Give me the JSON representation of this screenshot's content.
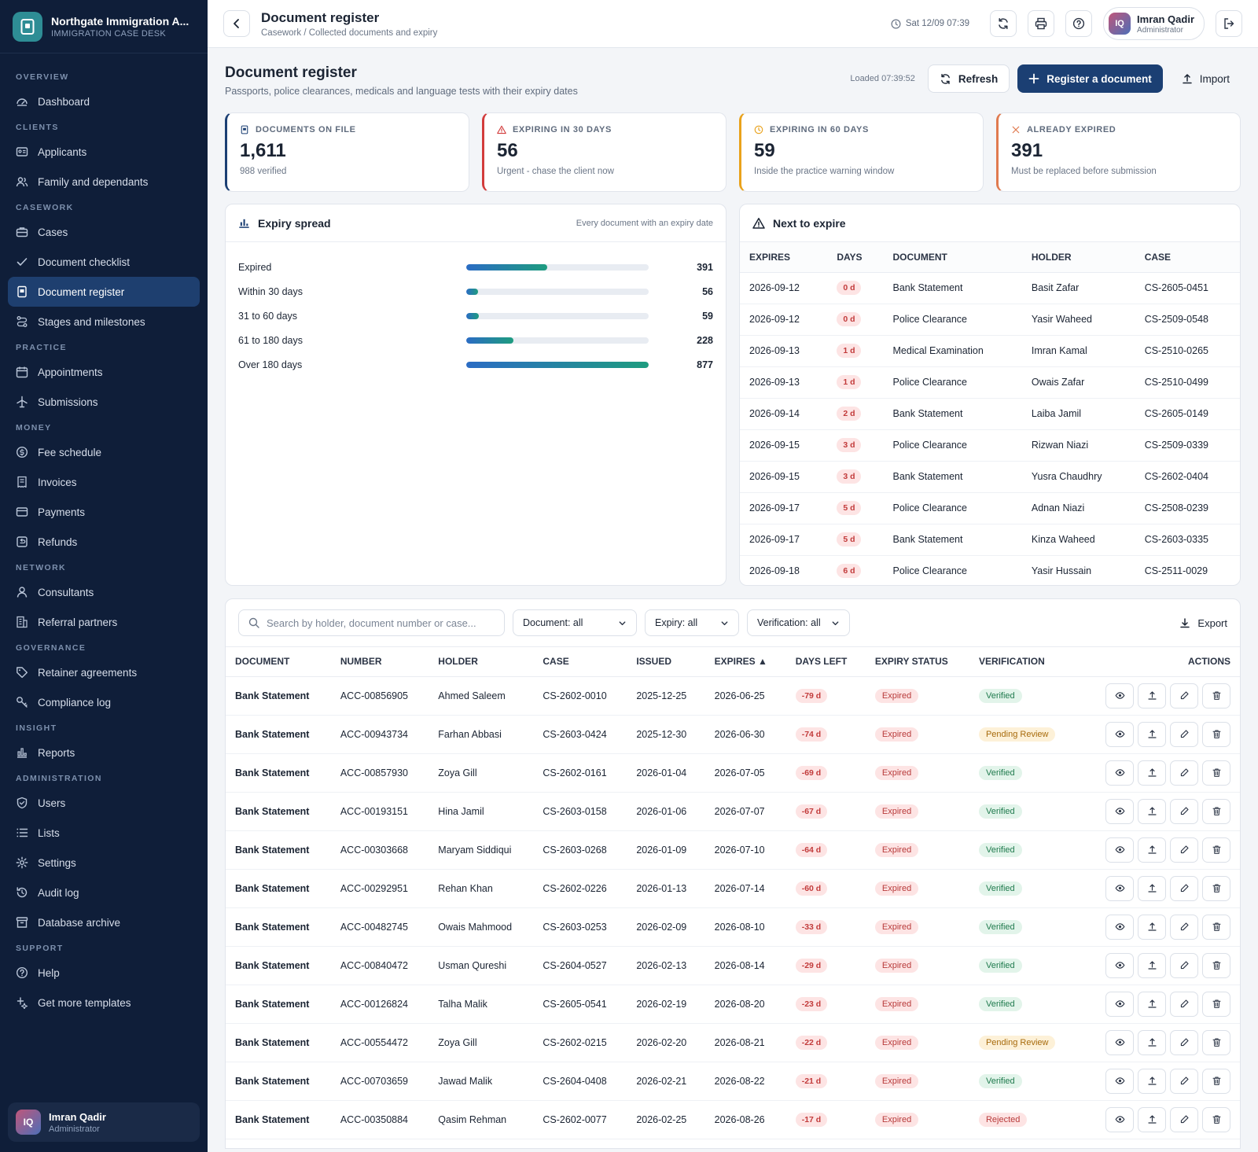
{
  "app": {
    "title": "Northgate Immigration A...",
    "subtitle": "IMMIGRATION CASE DESK"
  },
  "sidebar": {
    "sections": [
      {
        "label": "OVERVIEW",
        "items": [
          {
            "label": "Dashboard",
            "icon": "dashboard-icon"
          }
        ]
      },
      {
        "label": "CLIENTS",
        "items": [
          {
            "label": "Applicants",
            "icon": "id-card-icon"
          },
          {
            "label": "Family and dependants",
            "icon": "users-icon"
          }
        ]
      },
      {
        "label": "CASEWORK",
        "items": [
          {
            "label": "Cases",
            "icon": "briefcase-icon"
          },
          {
            "label": "Document checklist",
            "icon": "check-icon"
          },
          {
            "label": "Document register",
            "icon": "document-icon",
            "active": true
          },
          {
            "label": "Stages and milestones",
            "icon": "route-icon"
          }
        ]
      },
      {
        "label": "PRACTICE",
        "items": [
          {
            "label": "Appointments",
            "icon": "calendar-icon"
          },
          {
            "label": "Submissions",
            "icon": "plane-icon"
          }
        ]
      },
      {
        "label": "MONEY",
        "items": [
          {
            "label": "Fee schedule",
            "icon": "dollar-icon"
          },
          {
            "label": "Invoices",
            "icon": "receipt-icon"
          },
          {
            "label": "Payments",
            "icon": "card-icon"
          },
          {
            "label": "Refunds",
            "icon": "refund-icon"
          }
        ]
      },
      {
        "label": "NETWORK",
        "items": [
          {
            "label": "Consultants",
            "icon": "user-icon"
          },
          {
            "label": "Referral partners",
            "icon": "building-icon"
          }
        ]
      },
      {
        "label": "GOVERNANCE",
        "items": [
          {
            "label": "Retainer agreements",
            "icon": "tag-icon"
          },
          {
            "label": "Compliance log",
            "icon": "key-icon"
          }
        ]
      },
      {
        "label": "INSIGHT",
        "items": [
          {
            "label": "Reports",
            "icon": "bar-chart-icon"
          }
        ]
      },
      {
        "label": "ADMINISTRATION",
        "items": [
          {
            "label": "Users",
            "icon": "shield-icon"
          },
          {
            "label": "Lists",
            "icon": "list-icon"
          },
          {
            "label": "Settings",
            "icon": "gear-icon"
          },
          {
            "label": "Audit log",
            "icon": "history-icon"
          },
          {
            "label": "Database archive",
            "icon": "archive-icon"
          }
        ]
      },
      {
        "label": "SUPPORT",
        "items": [
          {
            "label": "Help",
            "icon": "help-icon"
          },
          {
            "label": "Get more templates",
            "icon": "sparkle-icon"
          }
        ]
      }
    ],
    "user": {
      "initials": "IQ",
      "name": "Imran Qadir",
      "role": "Administrator"
    }
  },
  "topbar": {
    "title": "Document register",
    "breadcrumb": "Casework / Collected documents and expiry",
    "clock": "Sat 12/09 07:39",
    "user": {
      "initials": "IQ",
      "name": "Imran Qadir",
      "role": "Administrator"
    }
  },
  "page": {
    "title": "Document register",
    "subtitle": "Passports, police clearances, medicals and language tests with their expiry dates",
    "loaded": "Loaded 07:39:52",
    "refresh_label": "Refresh",
    "register_label": "Register a document",
    "import_label": "Import"
  },
  "kpis": [
    {
      "label": "DOCUMENTS ON FILE",
      "value": "1,611",
      "note": "988 verified",
      "color": "#1b3f73",
      "icon": "document-icon"
    },
    {
      "label": "EXPIRING IN 30 DAYS",
      "value": "56",
      "note": "Urgent - chase the client now",
      "color": "#d23c3c",
      "icon": "warning-icon"
    },
    {
      "label": "EXPIRING IN 60 DAYS",
      "value": "59",
      "note": "Inside the practice warning window",
      "color": "#e9a21b",
      "icon": "clock-icon"
    },
    {
      "label": "ALREADY EXPIRED",
      "value": "391",
      "note": "Must be replaced before submission",
      "color": "#e07a4f",
      "icon": "x-icon"
    }
  ],
  "spread": {
    "title": "Expiry spread",
    "note": "Every document with an expiry date",
    "max": 877,
    "rows": [
      {
        "label": "Expired",
        "value": 391
      },
      {
        "label": "Within 30 days",
        "value": 56
      },
      {
        "label": "31 to 60 days",
        "value": 59
      },
      {
        "label": "61 to 180 days",
        "value": 228
      },
      {
        "label": "Over 180 days",
        "value": 877
      }
    ]
  },
  "next_expire": {
    "title": "Next to expire",
    "headers": [
      "EXPIRES",
      "DAYS",
      "DOCUMENT",
      "HOLDER",
      "CASE"
    ],
    "rows": [
      [
        "2026-09-12",
        "0 d",
        "Bank Statement",
        "Basit Zafar",
        "CS-2605-0451"
      ],
      [
        "2026-09-12",
        "0 d",
        "Police Clearance",
        "Yasir Waheed",
        "CS-2509-0548"
      ],
      [
        "2026-09-13",
        "1 d",
        "Medical Examination",
        "Imran Kamal",
        "CS-2510-0265"
      ],
      [
        "2026-09-13",
        "1 d",
        "Police Clearance",
        "Owais Zafar",
        "CS-2510-0499"
      ],
      [
        "2026-09-14",
        "2 d",
        "Bank Statement",
        "Laiba Jamil",
        "CS-2605-0149"
      ],
      [
        "2026-09-15",
        "3 d",
        "Police Clearance",
        "Rizwan Niazi",
        "CS-2509-0339"
      ],
      [
        "2026-09-15",
        "3 d",
        "Bank Statement",
        "Yusra Chaudhry",
        "CS-2602-0404"
      ],
      [
        "2026-09-17",
        "5 d",
        "Police Clearance",
        "Adnan Niazi",
        "CS-2508-0239"
      ],
      [
        "2026-09-17",
        "5 d",
        "Bank Statement",
        "Kinza Waheed",
        "CS-2603-0335"
      ],
      [
        "2026-09-18",
        "6 d",
        "Police Clearance",
        "Yasir Hussain",
        "CS-2511-0029"
      ]
    ]
  },
  "filters": {
    "search_placeholder": "Search by holder, document number or case...",
    "document": "Document: all",
    "expiry": "Expiry: all",
    "verification": "Verification: all",
    "export_label": "Export"
  },
  "register": {
    "headers": [
      "DOCUMENT",
      "NUMBER",
      "HOLDER",
      "CASE",
      "ISSUED",
      "EXPIRES ▲",
      "DAYS LEFT",
      "EXPIRY STATUS",
      "VERIFICATION",
      "ACTIONS"
    ],
    "rows": [
      [
        "Bank Statement",
        "ACC-00856905",
        "Ahmed Saleem",
        "CS-2602-0010",
        "2025-12-25",
        "2026-06-25",
        "-79 d",
        "Expired",
        "Verified"
      ],
      [
        "Bank Statement",
        "ACC-00943734",
        "Farhan Abbasi",
        "CS-2603-0424",
        "2025-12-30",
        "2026-06-30",
        "-74 d",
        "Expired",
        "Pending Review"
      ],
      [
        "Bank Statement",
        "ACC-00857930",
        "Zoya Gill",
        "CS-2602-0161",
        "2026-01-04",
        "2026-07-05",
        "-69 d",
        "Expired",
        "Verified"
      ],
      [
        "Bank Statement",
        "ACC-00193151",
        "Hina Jamil",
        "CS-2603-0158",
        "2026-01-06",
        "2026-07-07",
        "-67 d",
        "Expired",
        "Verified"
      ],
      [
        "Bank Statement",
        "ACC-00303668",
        "Maryam Siddiqui",
        "CS-2603-0268",
        "2026-01-09",
        "2026-07-10",
        "-64 d",
        "Expired",
        "Verified"
      ],
      [
        "Bank Statement",
        "ACC-00292951",
        "Rehan Khan",
        "CS-2602-0226",
        "2026-01-13",
        "2026-07-14",
        "-60 d",
        "Expired",
        "Verified"
      ],
      [
        "Bank Statement",
        "ACC-00482745",
        "Owais Mahmood",
        "CS-2603-0253",
        "2026-02-09",
        "2026-08-10",
        "-33 d",
        "Expired",
        "Verified"
      ],
      [
        "Bank Statement",
        "ACC-00840472",
        "Usman Qureshi",
        "CS-2604-0527",
        "2026-02-13",
        "2026-08-14",
        "-29 d",
        "Expired",
        "Verified"
      ],
      [
        "Bank Statement",
        "ACC-00126824",
        "Talha Malik",
        "CS-2605-0541",
        "2026-02-19",
        "2026-08-20",
        "-23 d",
        "Expired",
        "Verified"
      ],
      [
        "Bank Statement",
        "ACC-00554472",
        "Zoya Gill",
        "CS-2602-0215",
        "2026-02-20",
        "2026-08-21",
        "-22 d",
        "Expired",
        "Pending Review"
      ],
      [
        "Bank Statement",
        "ACC-00703659",
        "Jawad Malik",
        "CS-2604-0408",
        "2026-02-21",
        "2026-08-22",
        "-21 d",
        "Expired",
        "Verified"
      ],
      [
        "Bank Statement",
        "ACC-00350884",
        "Qasim Rehman",
        "CS-2602-0077",
        "2026-02-25",
        "2026-08-26",
        "-17 d",
        "Expired",
        "Rejected"
      ]
    ],
    "action_icons": [
      "eye-icon",
      "upload-icon",
      "edit-icon",
      "trash-icon"
    ]
  }
}
